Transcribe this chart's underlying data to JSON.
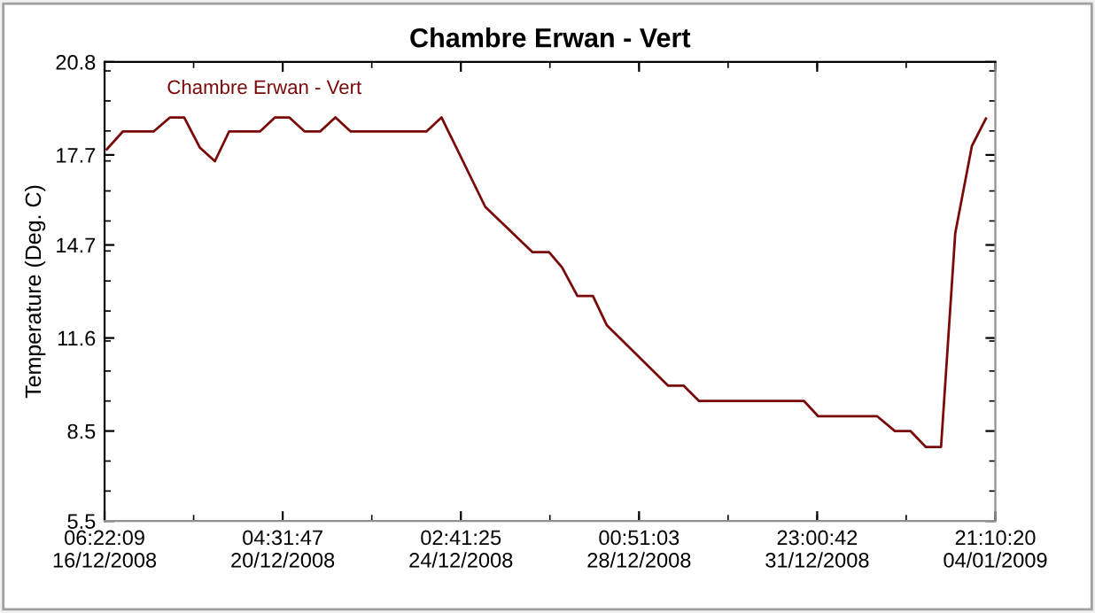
{
  "chart_data": {
    "type": "line",
    "title": "Chambre Erwan - Vert",
    "ylabel": "Temperature (Deg. C)",
    "x": [
      "2008-12-16T07:34",
      "2008-12-16T16:00",
      "2008-12-17T08:16",
      "2008-12-17T16:58",
      "2008-12-18T00:28",
      "2008-12-18T08:40",
      "2008-12-18T16:40",
      "2008-12-19T00:10",
      "2008-12-19T16:28",
      "2008-12-20T00:28",
      "2008-12-20T07:58",
      "2008-12-20T16:10",
      "2008-12-21T00:16",
      "2008-12-21T08:22",
      "2008-12-21T16:28",
      "2008-12-23T08:28",
      "2008-12-23T16:28",
      "2008-12-24T15:34",
      "2008-12-25T16:34",
      "2008-12-26T01:16",
      "2008-12-26T08:10",
      "2008-12-26T16:16",
      "2008-12-27T00:28",
      "2008-12-27T07:52",
      "2008-12-28T16:16",
      "2008-12-29T00:28",
      "2008-12-29T08:34",
      "2008-12-31T16:04",
      "2008-12-31T23:34",
      "2009-01-02T06:46",
      "2009-01-02T16:04",
      "2009-01-03T00:16",
      "2009-01-03T08:22",
      "2009-01-03T16:28",
      "2009-01-03T23:58",
      "2009-01-04T08:46",
      "2009-01-04T16:10"
    ],
    "series": [
      {
        "name": "Chambre Erwan - Vert",
        "color": "#7a0a0a",
        "values": [
          17.89,
          18.48,
          18.48,
          18.95,
          18.95,
          17.95,
          17.49,
          18.48,
          18.48,
          18.95,
          18.95,
          18.48,
          18.48,
          18.95,
          18.48,
          18.48,
          18.95,
          15.97,
          14.46,
          14.46,
          13.95,
          13.0,
          13.0,
          12.02,
          10.01,
          10.01,
          9.5,
          9.5,
          8.99,
          8.99,
          8.5,
          8.5,
          7.97,
          7.97,
          15.09,
          18.0,
          18.91
        ]
      }
    ],
    "xlim": [
      "2008-12-16T06:22",
      "2009-01-04T21:10"
    ],
    "xticks": [
      {
        "value": "2008-12-16T06:22",
        "label": "06:22:09\n16/12/2008"
      },
      {
        "value": "2008-12-20T04:31",
        "label": "04:31:47\n20/12/2008"
      },
      {
        "value": "2008-12-24T02:41",
        "label": "02:41:25\n24/12/2008"
      },
      {
        "value": "2008-12-28T00:51",
        "label": "00:51:03\n28/12/2008"
      },
      {
        "value": "2008-12-31T23:00",
        "label": "23:00:42\n31/12/2008"
      },
      {
        "value": "2009-01-04T21:10",
        "label": "21:10:20\n04/01/2009"
      }
    ],
    "ylim": [
      5.5,
      20.8
    ],
    "yticks": [
      5.5,
      8.5,
      11.6,
      14.7,
      17.7,
      20.8
    ],
    "grid": false,
    "legend": "top left",
    "marker": "none",
    "line_style": "solid"
  }
}
